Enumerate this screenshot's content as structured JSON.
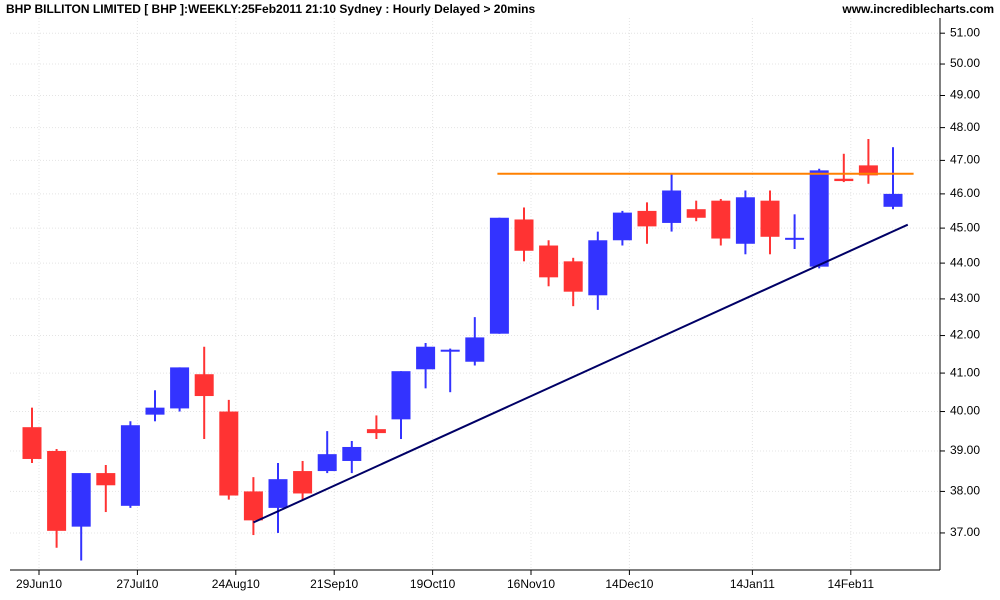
{
  "chart_data": {
    "type": "candlestick",
    "title": "BHP BILLITON LIMITED [ BHP ]:WEEKLY:25Feb2011 21:10 Sydney : Hourly Delayed > 20mins",
    "source": "www.incrediblecharts.com",
    "categories": [
      "29Jun10",
      null,
      null,
      null,
      "27Jul10",
      null,
      null,
      null,
      "24Aug10",
      null,
      null,
      null,
      "21Sep10",
      null,
      null,
      null,
      "19Oct10",
      null,
      null,
      null,
      "16Nov10",
      null,
      null,
      null,
      "14Dec10",
      null,
      null,
      null,
      null,
      "14Jan11",
      null,
      null,
      null,
      "14Feb11",
      null,
      null
    ],
    "open": [
      39.6,
      39.0,
      37.15,
      38.45,
      37.65,
      39.92,
      40.08,
      40.97,
      40.0,
      38.0,
      37.6,
      38.5,
      38.5,
      38.75,
      39.55,
      39.8,
      41.1,
      41.58,
      41.3,
      42.05,
      45.25,
      44.5,
      44.05,
      43.1,
      44.65,
      45.5,
      45.15,
      45.55,
      45.8,
      44.55,
      45.8,
      44.68,
      43.9,
      46.45,
      46.85,
      45.62
    ],
    "high": [
      40.1,
      39.05,
      38.45,
      38.65,
      39.75,
      40.55,
      41.15,
      41.7,
      40.3,
      38.35,
      38.7,
      38.75,
      39.5,
      39.25,
      39.9,
      41.05,
      41.8,
      41.65,
      42.5,
      45.3,
      45.6,
      44.65,
      44.15,
      44.9,
      45.5,
      45.75,
      46.6,
      45.8,
      45.85,
      46.1,
      46.1,
      45.4,
      46.75,
      47.2,
      47.65,
      47.4
    ],
    "low": [
      38.7,
      36.65,
      36.35,
      37.5,
      37.6,
      39.75,
      40.0,
      39.3,
      37.8,
      36.95,
      37.0,
      37.8,
      38.45,
      38.45,
      39.3,
      39.3,
      40.6,
      40.5,
      41.2,
      42.05,
      44.05,
      43.35,
      42.8,
      42.7,
      44.5,
      44.55,
      44.9,
      45.2,
      44.5,
      44.25,
      44.25,
      44.4,
      43.85,
      46.35,
      46.3,
      45.55
    ],
    "close": [
      38.8,
      37.05,
      38.45,
      38.15,
      39.65,
      40.1,
      41.15,
      40.4,
      37.9,
      37.3,
      38.3,
      37.95,
      38.92,
      39.1,
      39.45,
      41.05,
      41.7,
      41.62,
      41.95,
      45.3,
      44.35,
      43.6,
      43.2,
      44.65,
      45.45,
      45.05,
      46.1,
      45.3,
      44.7,
      45.9,
      44.75,
      44.72,
      46.7,
      46.38,
      46.55,
      46.0
    ],
    "up_color": "#3333ff",
    "down_color": "#ff3333",
    "log_scale": true,
    "ylim": [
      36.13,
      51.5
    ],
    "yticks": [
      {
        "value": 37,
        "label": "37.00"
      },
      {
        "value": 38,
        "label": "38.00"
      },
      {
        "value": 39,
        "label": "39.00"
      },
      {
        "value": 40,
        "label": "40.00"
      },
      {
        "value": 41,
        "label": "41.00"
      },
      {
        "value": 42,
        "label": "42.00"
      },
      {
        "value": 43,
        "label": "43.00"
      },
      {
        "value": 44,
        "label": "44.00"
      },
      {
        "value": 45,
        "label": "45.00"
      },
      {
        "value": 46,
        "label": "46.00"
      },
      {
        "value": 47,
        "label": "47.00"
      },
      {
        "value": 48,
        "label": "48.00"
      },
      {
        "value": 49,
        "label": "49.00"
      },
      {
        "value": 50,
        "label": "50.00"
      },
      {
        "value": 51,
        "label": "51.00"
      }
    ],
    "grid": true,
    "hline": {
      "value": 46.6,
      "start": 19,
      "end": 36,
      "color": "#ff8000"
    },
    "trendline": {
      "start": [
        9,
        37.25
      ],
      "end": [
        35.6,
        45.1
      ],
      "color": "#000066"
    }
  }
}
